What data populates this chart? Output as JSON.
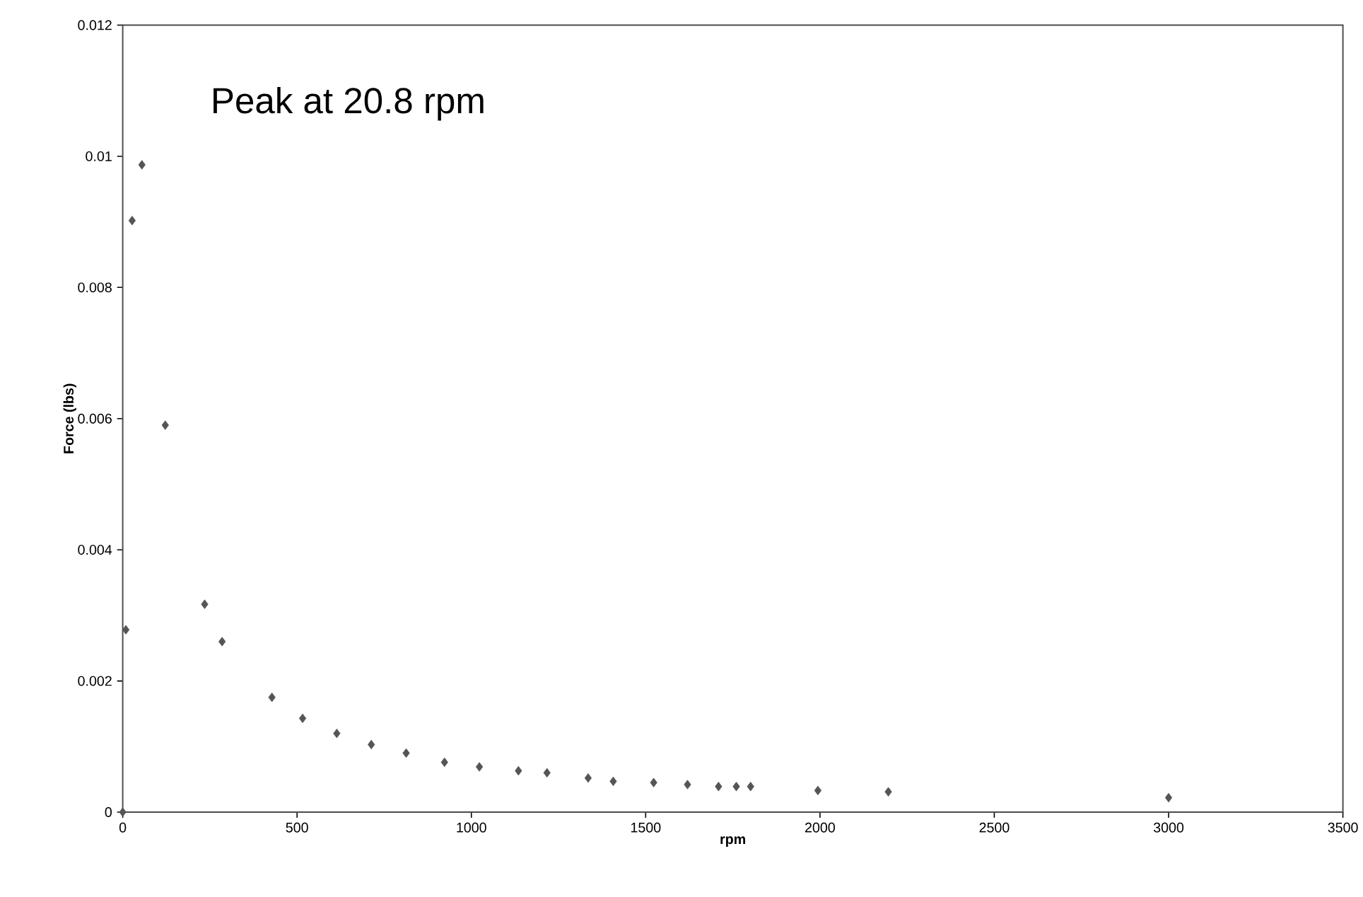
{
  "chart_data": {
    "type": "scatter",
    "xlabel": "rpm",
    "ylabel": "Force (lbs)",
    "annotations": [
      "Peak at 20.8 rpm"
    ],
    "marker": "diamond",
    "grid": false,
    "x": [
      0,
      9,
      27,
      55,
      122,
      235,
      285,
      428,
      516,
      614,
      713,
      813,
      923,
      1023,
      1135,
      1217,
      1335,
      1407,
      1523,
      1620,
      1709,
      1760,
      1801,
      1994,
      2196,
      3000
    ],
    "values": [
      0,
      0.00278,
      0.00902,
      0.00987,
      0.0059,
      0.00317,
      0.0026,
      0.00175,
      0.00143,
      0.0012,
      0.00103,
      0.0009,
      0.00076,
      0.00069,
      0.00063,
      0.0006,
      0.00052,
      0.00047,
      0.00045,
      0.00042,
      0.00039,
      0.00039,
      0.00039,
      0.00033,
      0.00031,
      0.00022
    ],
    "color": "#555555",
    "xlim": [
      0,
      3500
    ],
    "xticks": [
      0,
      500,
      1000,
      1500,
      2000,
      2500,
      3000,
      3500
    ],
    "ylim": [
      0,
      0.012
    ],
    "yticks": [
      0,
      0.002,
      0.004,
      0.006,
      0.008,
      0.01,
      0.012
    ]
  }
}
